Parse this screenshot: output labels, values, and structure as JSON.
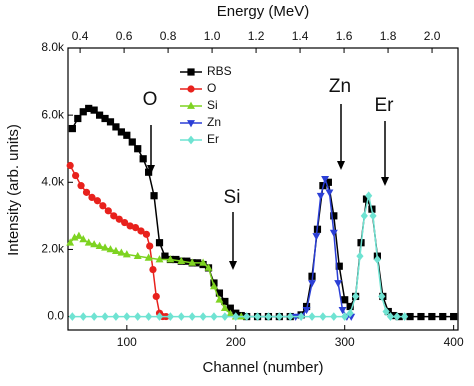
{
  "chart_data": {
    "type": "scatter",
    "title_top": "Energy (MeV)",
    "xlabel": "Channel (number)",
    "ylabel": "Intensity (arb. units)",
    "xlim": [
      46,
      404
    ],
    "xticks": [
      100,
      200,
      300,
      400
    ],
    "x2lim": [
      0.345,
      2.118
    ],
    "x2ticks": [
      0.4,
      0.6,
      0.8,
      {
        "value": 1.0,
        "label": "1.0"
      },
      1.2,
      1.4,
      1.6,
      1.8,
      {
        "value": 2.0,
        "label": "2.0"
      }
    ],
    "ylim": [
      -400,
      8000
    ],
    "yticks": [
      {
        "value": 0,
        "label": "0.0"
      },
      {
        "value": 2000,
        "label": "2.0k"
      },
      {
        "value": 4000,
        "label": "4.0k"
      },
      {
        "value": 6000,
        "label": "6.0k"
      },
      {
        "value": 8000,
        "label": "8.0k"
      }
    ],
    "legend": true,
    "series": [
      {
        "name": "RBS",
        "color": "#000000",
        "marker": "square",
        "x": [
          50,
          55,
          60,
          65,
          70,
          75,
          80,
          85,
          90,
          95,
          100,
          105,
          110,
          115,
          120,
          125,
          130,
          135,
          140,
          145,
          150,
          155,
          160,
          165,
          170,
          175,
          180,
          185,
          190,
          195,
          200,
          205,
          210,
          220,
          230,
          240,
          250,
          260,
          265,
          270,
          275,
          280,
          285,
          290,
          295,
          300,
          305,
          310,
          315,
          320,
          325,
          330,
          335,
          340,
          345,
          350,
          360,
          370,
          380,
          390,
          400
        ],
        "values": [
          5600,
          5900,
          6100,
          6200,
          6150,
          6000,
          5900,
          5800,
          5650,
          5500,
          5400,
          5200,
          5000,
          4700,
          4300,
          3600,
          2200,
          1800,
          1700,
          1700,
          1650,
          1650,
          1600,
          1600,
          1550,
          1450,
          1000,
          700,
          450,
          250,
          100,
          30,
          0,
          0,
          0,
          0,
          0,
          50,
          300,
          1200,
          2600,
          3900,
          4000,
          3000,
          1500,
          500,
          300,
          600,
          2200,
          3500,
          3200,
          1800,
          600,
          150,
          30,
          0,
          0,
          0,
          0,
          0,
          0
        ]
      },
      {
        "name": "O",
        "color": "#e8211c",
        "marker": "circle",
        "x": [
          48,
          53,
          58,
          63,
          68,
          73,
          78,
          83,
          88,
          93,
          98,
          103,
          108,
          113,
          118,
          121,
          124,
          127,
          130,
          133,
          136
        ],
        "values": [
          4500,
          4200,
          3900,
          3700,
          3550,
          3450,
          3300,
          3150,
          3000,
          2900,
          2800,
          2700,
          2650,
          2550,
          2450,
          2100,
          1400,
          600,
          100,
          0,
          0
        ]
      },
      {
        "name": "Si",
        "color": "#7ed321",
        "marker": "triangle-up",
        "x": [
          48,
          52,
          56,
          60,
          65,
          70,
          75,
          80,
          85,
          90,
          95,
          100,
          110,
          120,
          130,
          140,
          150,
          160,
          170,
          175,
          180,
          185,
          190,
          195,
          200,
          205
        ],
        "values": [
          2200,
          2350,
          2400,
          2300,
          2200,
          2150,
          2100,
          2050,
          2000,
          1950,
          1900,
          1850,
          1800,
          1750,
          1700,
          1700,
          1650,
          1600,
          1600,
          1450,
          900,
          500,
          250,
          80,
          0,
          0
        ]
      },
      {
        "name": "Zn",
        "color": "#2b3fd6",
        "marker": "triangle-down",
        "x": [
          255,
          260,
          265,
          270,
          274,
          278,
          282,
          286,
          290,
          294,
          298,
          302,
          306
        ],
        "values": [
          0,
          0,
          200,
          1000,
          2400,
          3600,
          4100,
          3700,
          2500,
          1000,
          200,
          0,
          0
        ]
      },
      {
        "name": "Er",
        "color": "#6fe3d2",
        "marker": "diamond",
        "x": [
          50,
          60,
          70,
          80,
          90,
          100,
          110,
          120,
          130,
          140,
          150,
          160,
          170,
          180,
          190,
          200,
          210,
          220,
          230,
          240,
          250,
          260,
          270,
          280,
          290,
          300,
          305,
          310,
          314,
          318,
          322,
          326,
          330,
          334,
          338,
          342,
          348,
          355
        ],
        "values": [
          0,
          0,
          0,
          0,
          0,
          0,
          0,
          0,
          0,
          0,
          0,
          0,
          0,
          0,
          0,
          0,
          0,
          0,
          0,
          0,
          0,
          0,
          0,
          0,
          0,
          0,
          100,
          600,
          1800,
          3000,
          3600,
          3000,
          1700,
          600,
          150,
          0,
          0,
          0
        ]
      }
    ],
    "annotations": [
      "O",
      "Si",
      "Zn",
      "Er"
    ]
  }
}
